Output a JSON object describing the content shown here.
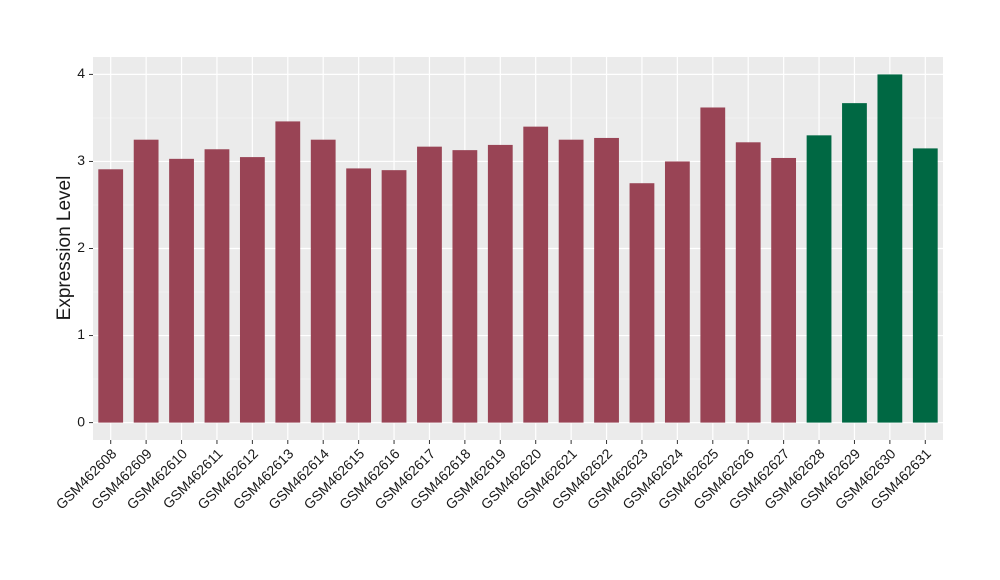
{
  "chart_data": {
    "type": "bar",
    "y_label": "Expression Level",
    "categories": [
      "GSM462608",
      "GSM462609",
      "GSM462610",
      "GSM462611",
      "GSM462612",
      "GSM462613",
      "GSM462614",
      "GSM462615",
      "GSM462616",
      "GSM462617",
      "GSM462618",
      "GSM462619",
      "GSM462620",
      "GSM462621",
      "GSM462622",
      "GSM462623",
      "GSM462624",
      "GSM462625",
      "GSM462626",
      "GSM462627",
      "GSM462628",
      "GSM462629",
      "GSM462630",
      "GSM462631"
    ],
    "values": [
      2.91,
      3.25,
      3.03,
      3.14,
      3.05,
      3.46,
      3.25,
      2.92,
      2.9,
      3.17,
      3.13,
      3.19,
      3.4,
      3.25,
      3.27,
      2.75,
      3.0,
      3.62,
      3.22,
      3.04,
      3.3,
      3.67,
      4.0,
      3.15
    ],
    "colors": [
      "#994455",
      "#994455",
      "#994455",
      "#994455",
      "#994455",
      "#994455",
      "#994455",
      "#994455",
      "#994455",
      "#994455",
      "#994455",
      "#994455",
      "#994455",
      "#994455",
      "#994455",
      "#994455",
      "#994455",
      "#994455",
      "#994455",
      "#994455",
      "#006843",
      "#006843",
      "#006843",
      "#006843"
    ],
    "ylim": [
      -0.2,
      4.2
    ],
    "yticks": [
      0,
      1,
      2,
      3,
      4
    ],
    "grid": true
  }
}
